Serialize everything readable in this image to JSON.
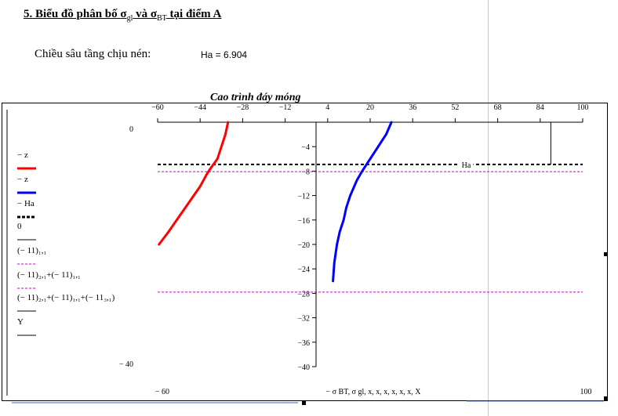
{
  "page": {
    "heading_prefix": "5. Biểu đồ phân bố ",
    "heading_sigma1": "σ",
    "heading_sub1": "gl",
    "heading_mid": " và ",
    "heading_sigma2": "σ",
    "heading_sub2": "BT",
    "heading_suffix": " tại điểm A",
    "depth_label": "Chiều sâu tầng chịu nén:",
    "depth_value": "Ha = 6.904"
  },
  "chart_data": {
    "type": "line",
    "title": "Cao trình đáy móng",
    "xlabel": "− σ BT, σ gl, x, x, x, x, x, x, X",
    "ylabel": "",
    "xlim": [
      -60,
      100
    ],
    "ylim": [
      -40,
      0
    ],
    "x_ticks": [
      -60,
      -44,
      -28,
      -12,
      4,
      20,
      36,
      52,
      68,
      84,
      100
    ],
    "y_ticks": [
      -4,
      -8,
      -12,
      -16,
      -20,
      -24,
      -28,
      -32,
      -36,
      -40
    ],
    "x_axis_min_label": "− 60",
    "x_axis_max_label": "100",
    "y_axis_top_label": "0",
    "y_axis_bottom_label": "− 40",
    "ha_label": "Ha",
    "ha_value": -6.904,
    "colors": {
      "red": "#ff0000",
      "blue": "#0000ff",
      "magenta": "#cc00cc"
    },
    "series": [
      {
        "legend": "− z",
        "color": "#ff0000",
        "style": "solid",
        "x": [
          -33.5,
          -34.5,
          -36,
          -37.5,
          -40,
          -41.5,
          -44,
          -48,
          -52,
          -56,
          -59.5
        ],
        "y": [
          0,
          -2,
          -4,
          -6,
          -7.5,
          -8.5,
          -10.5,
          -13,
          -15.5,
          -18,
          -20
        ]
      },
      {
        "legend": "− z",
        "color": "#0000ff",
        "style": "solid",
        "x": [
          28,
          26,
          23,
          20,
          18.5,
          17,
          15,
          12.5,
          11,
          10,
          8.5,
          7.5,
          6.5,
          6
        ],
        "y": [
          0,
          -2,
          -4,
          -6,
          -7,
          -8,
          -9.5,
          -12,
          -14,
          -16,
          -18,
          -20,
          -23,
          -26
        ]
      },
      {
        "legend": "− Ha",
        "color": "#000000",
        "style": "dashed",
        "y_const": -6.904
      },
      {
        "legend": "0",
        "color": "#000000",
        "style": "solid",
        "vertical_segment": {
          "x": 88,
          "y_from": 0,
          "y_to": -6.904
        }
      },
      {
        "legend": "(− 11)₁,₁",
        "color": "#cc00cc",
        "style": "dashed",
        "y_const": -8.1
      },
      {
        "legend": "(− 11)₂,₁+(− 11)₁,₁",
        "color": "#cc00cc",
        "style": "dashed",
        "y_const": -27.8
      },
      {
        "legend": "(− 11)₂,₁+(− 11)₁,₁+(− 11₃,₁)",
        "color": "#000000",
        "style": "solid"
      },
      {
        "legend": "Y",
        "color": "#000000",
        "style": "solid"
      }
    ]
  }
}
